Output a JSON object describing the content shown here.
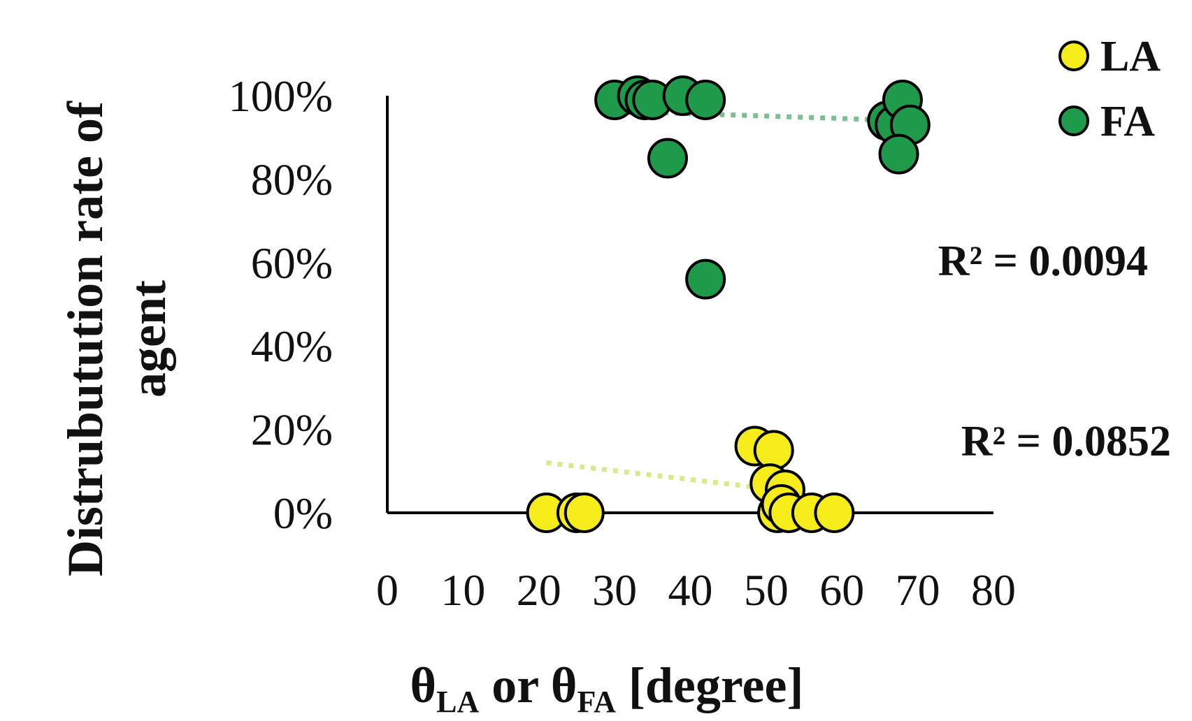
{
  "chart_data": {
    "type": "scatter",
    "xlabel": {
      "theta": "θ",
      "sub_la": "LA",
      "middle": " or ",
      "sub_fa": "FA",
      "units": " [degree]"
    },
    "ylabel_lines": [
      "Distrubutution rate of",
      "agent"
    ],
    "xlim": [
      0,
      80
    ],
    "ylim": [
      0,
      100
    ],
    "x_ticks": [
      0,
      10,
      20,
      30,
      40,
      50,
      60,
      70,
      80
    ],
    "y_ticks": [
      0,
      20,
      40,
      60,
      80,
      100
    ],
    "y_tick_labels": [
      "0%",
      "20%",
      "40%",
      "60%",
      "80%",
      "100%"
    ],
    "legend_position": "top-right",
    "series": [
      {
        "name": "LA",
        "color": "#f5ec1a",
        "trendline_color": "#d9e88a",
        "r2_label": "R² = 0.0852",
        "points": [
          [
            21,
            0
          ],
          [
            25,
            0
          ],
          [
            26,
            0
          ],
          [
            48.5,
            16
          ],
          [
            51,
            15
          ],
          [
            50.5,
            7
          ],
          [
            52.5,
            5.5
          ],
          [
            51.5,
            0
          ],
          [
            52,
            2
          ],
          [
            53,
            0
          ],
          [
            56,
            0
          ],
          [
            59,
            0
          ]
        ],
        "trendline": [
          [
            21,
            12
          ],
          [
            54,
            5
          ]
        ]
      },
      {
        "name": "FA",
        "color": "#1f9a4a",
        "trendline_color": "#7bbf8f",
        "r2_label": "R² = 0.0094",
        "points": [
          [
            30,
            99
          ],
          [
            33,
            100
          ],
          [
            34,
            99
          ],
          [
            35,
            99
          ],
          [
            39,
            100
          ],
          [
            42,
            99
          ],
          [
            37,
            85
          ],
          [
            42,
            56
          ],
          [
            66,
            94
          ],
          [
            67,
            93
          ],
          [
            68,
            99
          ],
          [
            69,
            93
          ],
          [
            67.5,
            86
          ]
        ],
        "trendline": [
          [
            35,
            96
          ],
          [
            69,
            94
          ]
        ]
      }
    ]
  }
}
